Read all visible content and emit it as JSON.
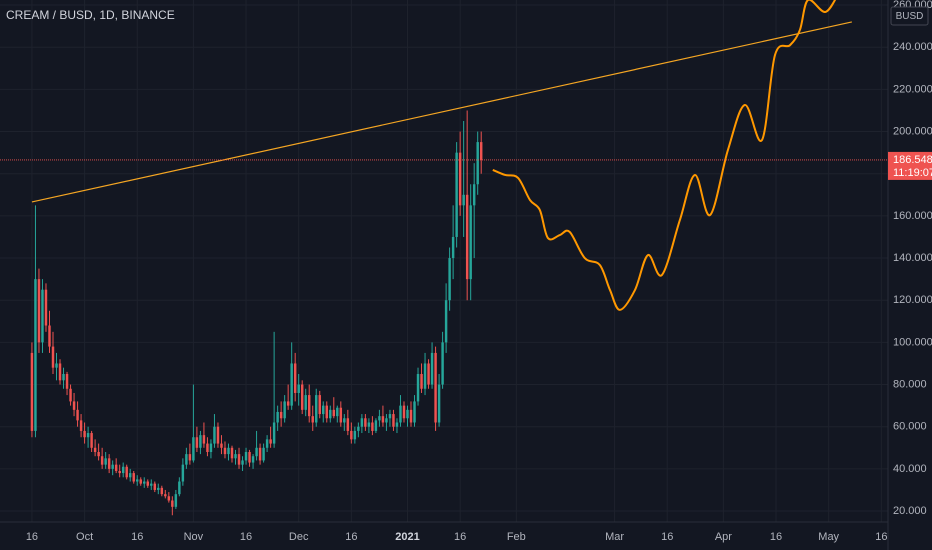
{
  "chart_data": {
    "type": "candlestick",
    "title": "CREAM / BUSD, 1D, BINANCE",
    "currency": "BUSD",
    "up_color": "#26a69a",
    "down_color": "#ef5350",
    "grid": true,
    "ylim": [
      14.8,
      262.4
    ],
    "yticks": [
      {
        "value": 20,
        "label": "20.000"
      },
      {
        "value": 40,
        "label": "40.000"
      },
      {
        "value": 60,
        "label": "60.000"
      },
      {
        "value": 80,
        "label": "80.000"
      },
      {
        "value": 100,
        "label": "100.000"
      },
      {
        "value": 120,
        "label": "120.000"
      },
      {
        "value": 140,
        "label": "140.000"
      },
      {
        "value": 160,
        "label": "160.000"
      },
      {
        "value": 180,
        "label": "180.000"
      },
      {
        "value": 200,
        "label": "200.000"
      },
      {
        "value": 220,
        "label": "220.000"
      },
      {
        "value": 240,
        "label": "240.000"
      },
      {
        "value": 260,
        "label": "260.000"
      }
    ],
    "xlim": [
      -9.1,
      243.9
    ],
    "xticks": [
      {
        "value": 0,
        "label": "16"
      },
      {
        "value": 15,
        "label": "Oct"
      },
      {
        "value": 30,
        "label": "16"
      },
      {
        "value": 46,
        "label": "Nov"
      },
      {
        "value": 61,
        "label": "16"
      },
      {
        "value": 76,
        "label": "Dec"
      },
      {
        "value": 91,
        "label": "16"
      },
      {
        "value": 107,
        "label": "2021"
      },
      {
        "value": 122,
        "label": "16"
      },
      {
        "value": 138,
        "label": "Feb"
      },
      {
        "value": 166,
        "label": "Mar"
      },
      {
        "value": 181,
        "label": "16"
      },
      {
        "value": 197,
        "label": "Apr"
      },
      {
        "value": 212,
        "label": "16"
      },
      {
        "value": 227,
        "label": "May"
      },
      {
        "value": 242,
        "label": "16"
      }
    ],
    "x": [
      0,
      1,
      2,
      3,
      4,
      5,
      6,
      7,
      8,
      9,
      10,
      11,
      12,
      13,
      14,
      15,
      16,
      17,
      18,
      19,
      20,
      21,
      22,
      23,
      24,
      25,
      26,
      27,
      28,
      29,
      30,
      31,
      32,
      33,
      34,
      35,
      36,
      37,
      38,
      39,
      40,
      41,
      42,
      43,
      44,
      45,
      46,
      47,
      48,
      49,
      50,
      51,
      52,
      53,
      54,
      55,
      56,
      57,
      58,
      59,
      60,
      61,
      62,
      63,
      64,
      65,
      66,
      67,
      68,
      69,
      70,
      71,
      72,
      73,
      74,
      75,
      76,
      77,
      78,
      79,
      80,
      81,
      82,
      83,
      84,
      85,
      86,
      87,
      88,
      89,
      90,
      91,
      92,
      93,
      94,
      95,
      96,
      97,
      98,
      99,
      100,
      101,
      102,
      103,
      104,
      105,
      106,
      107,
      108,
      109,
      110,
      111,
      112,
      113,
      114,
      115,
      116,
      117,
      118,
      119,
      120,
      121,
      122,
      123,
      124,
      125,
      126,
      127,
      128
    ],
    "ohlc": [
      [
        95,
        100,
        55,
        58
      ],
      [
        58,
        165,
        55,
        130
      ],
      [
        130,
        135,
        95,
        100
      ],
      [
        100,
        130,
        95,
        125
      ],
      [
        125,
        128,
        105,
        108
      ],
      [
        108,
        115,
        95,
        98
      ],
      [
        98,
        105,
        85,
        88
      ],
      [
        88,
        95,
        82,
        90
      ],
      [
        90,
        92,
        80,
        82
      ],
      [
        82,
        88,
        78,
        85
      ],
      [
        85,
        86,
        75,
        78
      ],
      [
        78,
        80,
        70,
        72
      ],
      [
        72,
        76,
        65,
        68
      ],
      [
        68,
        72,
        60,
        63
      ],
      [
        63,
        66,
        55,
        58
      ],
      [
        58,
        62,
        52,
        55
      ],
      [
        55,
        60,
        50,
        57
      ],
      [
        57,
        58,
        48,
        50
      ],
      [
        50,
        54,
        46,
        48
      ],
      [
        48,
        52,
        44,
        46
      ],
      [
        46,
        50,
        40,
        42
      ],
      [
        42,
        48,
        40,
        45
      ],
      [
        45,
        47,
        38,
        40
      ],
      [
        40,
        44,
        37,
        42
      ],
      [
        42,
        45,
        38,
        39
      ],
      [
        39,
        42,
        36,
        38
      ],
      [
        38,
        43,
        36,
        41
      ],
      [
        41,
        42,
        35,
        36
      ],
      [
        36,
        40,
        34,
        38
      ],
      [
        38,
        39,
        33,
        34
      ],
      [
        34,
        37,
        32,
        35
      ],
      [
        35,
        36,
        32,
        33
      ],
      [
        33,
        36,
        31,
        34
      ],
      [
        34,
        35,
        31,
        32
      ],
      [
        32,
        35,
        30,
        33
      ],
      [
        33,
        34,
        29,
        30
      ],
      [
        30,
        33,
        28,
        31
      ],
      [
        31,
        32,
        27,
        28
      ],
      [
        28,
        30,
        26,
        27
      ],
      [
        27,
        29,
        24,
        25
      ],
      [
        25,
        27,
        18,
        22
      ],
      [
        22,
        30,
        21,
        28
      ],
      [
        28,
        36,
        27,
        34
      ],
      [
        34,
        45,
        32,
        42
      ],
      [
        42,
        50,
        40,
        47
      ],
      [
        47,
        52,
        42,
        44
      ],
      [
        44,
        80,
        43,
        55
      ],
      [
        55,
        60,
        48,
        50
      ],
      [
        50,
        58,
        47,
        56
      ],
      [
        56,
        62,
        50,
        52
      ],
      [
        52,
        55,
        46,
        48
      ],
      [
        48,
        54,
        45,
        52
      ],
      [
        52,
        66,
        50,
        60
      ],
      [
        60,
        62,
        50,
        52
      ],
      [
        52,
        56,
        47,
        50
      ],
      [
        50,
        53,
        45,
        47
      ],
      [
        47,
        52,
        44,
        50
      ],
      [
        50,
        51,
        43,
        45
      ],
      [
        45,
        49,
        42,
        47
      ],
      [
        47,
        50,
        40,
        42
      ],
      [
        42,
        46,
        39,
        44
      ],
      [
        44,
        50,
        42,
        48
      ],
      [
        48,
        49,
        41,
        43
      ],
      [
        43,
        47,
        40,
        46
      ],
      [
        46,
        58,
        44,
        50
      ],
      [
        50,
        52,
        42,
        44
      ],
      [
        44,
        52,
        43,
        50
      ],
      [
        50,
        56,
        48,
        54
      ],
      [
        54,
        60,
        50,
        52
      ],
      [
        52,
        105,
        50,
        62
      ],
      [
        62,
        70,
        58,
        67
      ],
      [
        67,
        72,
        60,
        64
      ],
      [
        64,
        75,
        62,
        72
      ],
      [
        72,
        80,
        68,
        70
      ],
      [
        70,
        100,
        68,
        90
      ],
      [
        90,
        95,
        72,
        76
      ],
      [
        76,
        85,
        70,
        80
      ],
      [
        80,
        82,
        66,
        68
      ],
      [
        68,
        78,
        65,
        75
      ],
      [
        75,
        80,
        62,
        65
      ],
      [
        65,
        70,
        58,
        62
      ],
      [
        62,
        78,
        60,
        75
      ],
      [
        75,
        77,
        64,
        66
      ],
      [
        66,
        72,
        62,
        70
      ],
      [
        70,
        72,
        62,
        64
      ],
      [
        64,
        70,
        62,
        68
      ],
      [
        68,
        74,
        64,
        65
      ],
      [
        65,
        70,
        62,
        69
      ],
      [
        69,
        72,
        60,
        62
      ],
      [
        62,
        66,
        58,
        64
      ],
      [
        64,
        68,
        56,
        58
      ],
      [
        58,
        62,
        52,
        54
      ],
      [
        54,
        60,
        52,
        58
      ],
      [
        58,
        62,
        55,
        60
      ],
      [
        60,
        66,
        57,
        64
      ],
      [
        64,
        66,
        58,
        60
      ],
      [
        60,
        64,
        57,
        62
      ],
      [
        62,
        65,
        56,
        58
      ],
      [
        58,
        64,
        57,
        63
      ],
      [
        63,
        68,
        60,
        65
      ],
      [
        65,
        70,
        60,
        62
      ],
      [
        62,
        66,
        58,
        64
      ],
      [
        64,
        68,
        60,
        66
      ],
      [
        66,
        68,
        58,
        60
      ],
      [
        60,
        64,
        57,
        62
      ],
      [
        62,
        75,
        60,
        70
      ],
      [
        70,
        72,
        62,
        64
      ],
      [
        64,
        70,
        60,
        68
      ],
      [
        68,
        72,
        60,
        62
      ],
      [
        62,
        75,
        60,
        72
      ],
      [
        72,
        88,
        70,
        85
      ],
      [
        85,
        90,
        76,
        78
      ],
      [
        78,
        95,
        75,
        90
      ],
      [
        90,
        92,
        78,
        80
      ],
      [
        80,
        100,
        78,
        95
      ],
      [
        95,
        98,
        58,
        62
      ],
      [
        62,
        85,
        60,
        80
      ],
      [
        80,
        105,
        78,
        100
      ],
      [
        100,
        128,
        95,
        120
      ],
      [
        120,
        145,
        115,
        140
      ],
      [
        140,
        165,
        130,
        150
      ],
      [
        150,
        195,
        145,
        190
      ],
      [
        190,
        200,
        160,
        165
      ],
      [
        165,
        205,
        150,
        170
      ],
      [
        170,
        210,
        120,
        130
      ],
      [
        130,
        175,
        120,
        165
      ],
      [
        165,
        185,
        140,
        175
      ],
      [
        175,
        200,
        170,
        195
      ],
      [
        195,
        200,
        180,
        186.548
      ]
    ],
    "last_price": 186.548,
    "countdown": "11:19:07",
    "trendline": {
      "color": "#f5a623",
      "x": [
        0,
        233.6
      ],
      "values": [
        166.6,
        252
      ]
    },
    "projection": {
      "color": "#ff9800",
      "x": [
        131.3,
        134.8,
        138.5,
        141.9,
        144.7,
        147,
        150.4,
        153.2,
        157.5,
        161.8,
        164.7,
        167.5,
        171.8,
        175.5,
        179.5,
        184.6,
        188.9,
        193.2,
        198.3,
        203.1,
        208,
        211.7,
        216,
        218.8,
        221.1,
        226,
        229.6
      ],
      "values": [
        181.8,
        179.4,
        178,
        167.5,
        162.8,
        149.5,
        150.9,
        152.4,
        140,
        136.7,
        124.8,
        115.4,
        124.8,
        141.4,
        132,
        158,
        179.4,
        160.4,
        191.3,
        212.6,
        196,
        236.3,
        241,
        248.2,
        262.4,
        256.7,
        264.8
      ]
    }
  }
}
